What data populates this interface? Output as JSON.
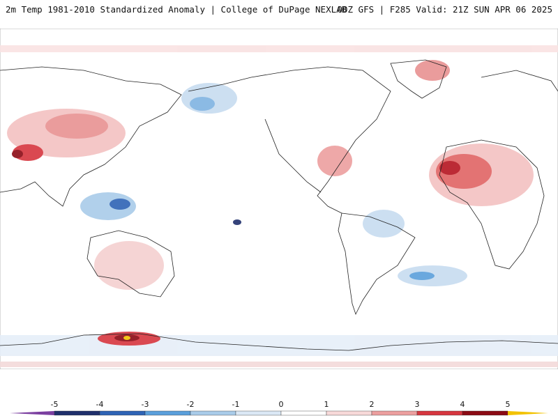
{
  "header": {
    "title": "2m Temp 1981-2010 Standardized Anomaly | College of DuPage NEXLAB",
    "run_info": "00Z GFS | F285 Valid: 21Z SUN APR 06 2025"
  },
  "colorbar": {
    "ticks": [
      "-5",
      "-4",
      "-3",
      "-2",
      "-1",
      "0",
      "1",
      "2",
      "3",
      "4",
      "5"
    ],
    "colors": {
      "neg5_left": "#7b3fa0",
      "neg5": "#1f2f6b",
      "neg4": "#2e63b5",
      "neg3": "#5a9fdb",
      "neg2": "#a9cbe9",
      "neg1": "#dbe8f5",
      "zero": "#ffffff",
      "pos1": "#f7d9d9",
      "pos2": "#ec9f9f",
      "pos3": "#d6363f",
      "pos4": "#8b0a14",
      "pos5": "#f2c200"
    }
  },
  "map": {
    "projection": "cylindrical",
    "center": "Pacific"
  }
}
